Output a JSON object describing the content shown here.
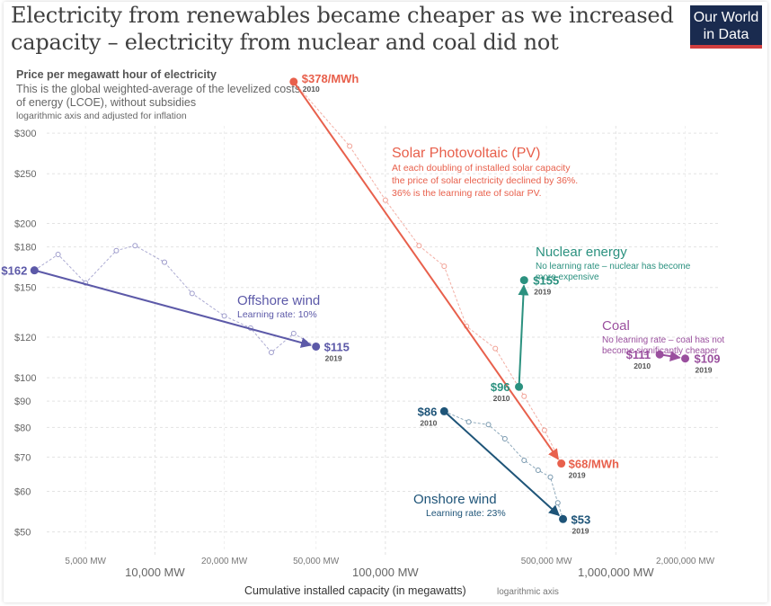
{
  "header": {
    "title": "Electricity from renewables became cheaper as we increased capacity – electricity from nuclear and coal did not",
    "logo_line1": "Our World",
    "logo_line2": "in Data",
    "subtitle": "Price per megawatt hour of electricity",
    "description": "This is the global weighted-average of the levelized costs of energy (LCOE), without subsidies",
    "note": "logarithmic axis and adjusted for inflation"
  },
  "chart_data": {
    "type": "scatter",
    "x_scale": "log",
    "y_scale": "log",
    "xlim": [
      2500,
      2800000
    ],
    "ylim": [
      47,
      395
    ],
    "xlabel": "Cumulative installed capacity (in megawatts)",
    "xlabel_note": "logarithmic axis",
    "grid": true,
    "y_ticks": [
      {
        "value": 50,
        "label": "$50"
      },
      {
        "value": 60,
        "label": "$60"
      },
      {
        "value": 70,
        "label": "$70"
      },
      {
        "value": 80,
        "label": "$80"
      },
      {
        "value": 90,
        "label": "$90"
      },
      {
        "value": 100,
        "label": "$100"
      },
      {
        "value": 120,
        "label": "$120"
      },
      {
        "value": 150,
        "label": "$150"
      },
      {
        "value": 180,
        "label": "$180"
      },
      {
        "value": 200,
        "label": "$200"
      },
      {
        "value": 250,
        "label": "$250"
      },
      {
        "value": 300,
        "label": "$300"
      }
    ],
    "x_ticks_major": [
      {
        "value": 10000,
        "label": "10,000 MW"
      },
      {
        "value": 100000,
        "label": "100,000 MW"
      },
      {
        "value": 1000000,
        "label": "1,000,000 MW"
      }
    ],
    "x_ticks_minor": [
      {
        "value": 5000,
        "label": "5,000 MW"
      },
      {
        "value": 20000,
        "label": "20,000 MW"
      },
      {
        "value": 50000,
        "label": "50,000 MW"
      },
      {
        "value": 500000,
        "label": "500,000 MW"
      },
      {
        "value": 2000000,
        "label": "2,000,000 MW"
      }
    ],
    "series": [
      {
        "name": "Solar Photovoltaic (PV)",
        "color": "#e8604c",
        "start": {
          "x": 40000,
          "y": 378,
          "label": "$378/MWh",
          "year": "2010"
        },
        "end": {
          "x": 580000,
          "y": 68,
          "label": "$68/MWh",
          "year": "2019"
        },
        "annual": [
          {
            "x": 40000,
            "y": 378
          },
          {
            "x": 70000,
            "y": 283
          },
          {
            "x": 100000,
            "y": 222
          },
          {
            "x": 140000,
            "y": 181
          },
          {
            "x": 180000,
            "y": 165
          },
          {
            "x": 225000,
            "y": 126
          },
          {
            "x": 300000,
            "y": 114
          },
          {
            "x": 400000,
            "y": 92
          },
          {
            "x": 490000,
            "y": 79
          },
          {
            "x": 580000,
            "y": 68
          }
        ],
        "note_lines": [
          "At each doubling of installed solar capacity",
          "the price of solar electricity declined by 36%.",
          "36% is the learning rate of solar PV."
        ]
      },
      {
        "name": "Offshore wind",
        "color": "#5c59a8",
        "start": {
          "x": 3000,
          "y": 162,
          "label": "$162",
          "year": ""
        },
        "end": {
          "x": 50000,
          "y": 115,
          "label": "$115",
          "year": "2019"
        },
        "annual": [
          {
            "x": 3000,
            "y": 162
          },
          {
            "x": 3800,
            "y": 174
          },
          {
            "x": 5000,
            "y": 153
          },
          {
            "x": 6800,
            "y": 177
          },
          {
            "x": 8200,
            "y": 181
          },
          {
            "x": 11000,
            "y": 168
          },
          {
            "x": 14500,
            "y": 146
          },
          {
            "x": 20000,
            "y": 132
          },
          {
            "x": 26000,
            "y": 125
          },
          {
            "x": 32000,
            "y": 112
          },
          {
            "x": 40000,
            "y": 122
          },
          {
            "x": 50000,
            "y": 115
          }
        ],
        "note_lines": [
          "Learning rate: 10%"
        ]
      },
      {
        "name": "Nuclear energy",
        "color": "#2b917f",
        "start": {
          "x": 380000,
          "y": 96,
          "label": "$96",
          "year": "2010"
        },
        "end": {
          "x": 400000,
          "y": 155,
          "label": "$155",
          "year": "2019"
        },
        "note_lines": [
          "No learning rate – nuclear has become",
          "more expensive"
        ]
      },
      {
        "name": "Coal",
        "color": "#9a4f9e",
        "start": {
          "x": 1550000,
          "y": 111,
          "label": "$111",
          "year": "2010"
        },
        "end": {
          "x": 2000000,
          "y": 109,
          "label": "$109",
          "year": "2019"
        },
        "note_lines": [
          "No learning rate – coal has not",
          "become significantly cheaper"
        ]
      },
      {
        "name": "Onshore wind",
        "color": "#1e5478",
        "start": {
          "x": 180000,
          "y": 86,
          "label": "$86",
          "year": "2010"
        },
        "end": {
          "x": 590000,
          "y": 53,
          "label": "$53",
          "year": "2019"
        },
        "annual": [
          {
            "x": 180000,
            "y": 86
          },
          {
            "x": 230000,
            "y": 82
          },
          {
            "x": 280000,
            "y": 81
          },
          {
            "x": 330000,
            "y": 76
          },
          {
            "x": 400000,
            "y": 69
          },
          {
            "x": 460000,
            "y": 66
          },
          {
            "x": 520000,
            "y": 64
          },
          {
            "x": 560000,
            "y": 57
          },
          {
            "x": 590000,
            "y": 53
          }
        ],
        "note_lines": [
          "Learning rate: 23%"
        ]
      }
    ]
  }
}
